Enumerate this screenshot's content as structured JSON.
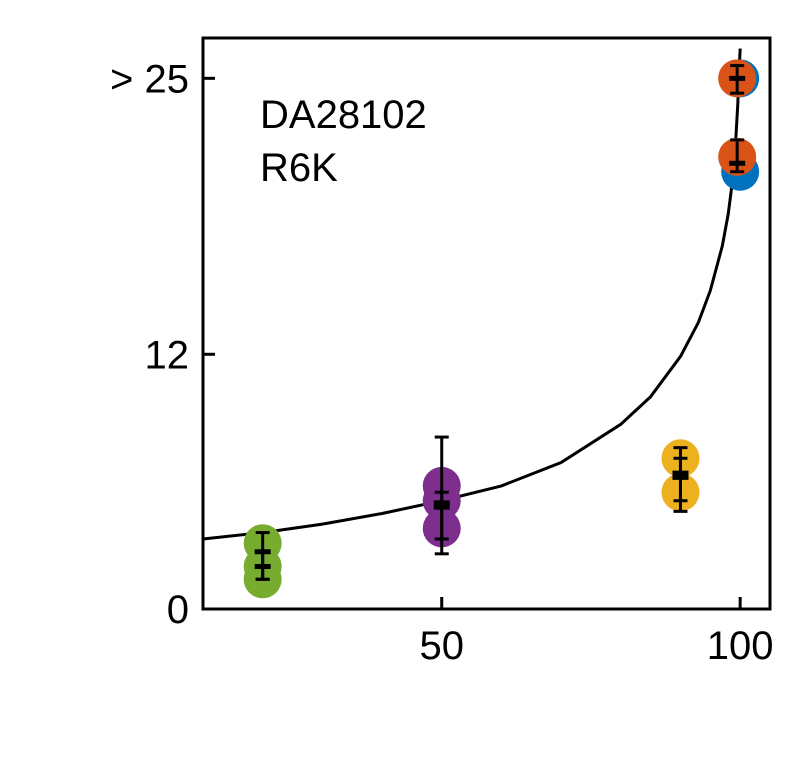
{
  "chart_data": {
    "type": "scatter",
    "title": "",
    "xlabel": "",
    "ylabel": "",
    "xlim": [
      10,
      105
    ],
    "ylim": [
      0,
      26.9
    ],
    "x_ticks": [
      50,
      100
    ],
    "x_tick_labels": [
      "50",
      "100"
    ],
    "y_ticks": [
      0,
      12,
      25
    ],
    "y_tick_labels": [
      "0",
      "12",
      "> 25"
    ],
    "annotation": [
      "DA28102",
      "R6K"
    ],
    "grid": false,
    "legend": "none",
    "point_groups": [
      {
        "color": "#77ac30",
        "x": 20,
        "y": [
          3.1,
          2.0,
          1.4
        ],
        "error_bars": [
          {
            "y": 2.7,
            "low": 1.4,
            "high": 3.6
          },
          {
            "y": 2.0,
            "low": 1.4,
            "high": 2.7
          }
        ]
      },
      {
        "color": "#7e2f8e",
        "x": 50,
        "y": [
          5.8,
          5.1,
          3.8
        ],
        "error_bars": [
          {
            "y": 5.0,
            "low": 2.6,
            "high": 8.1
          },
          {
            "y": 4.8,
            "low": 3.3,
            "high": 5.5
          }
        ]
      },
      {
        "color": "#edb120",
        "x": 90,
        "y": [
          7.1,
          5.5
        ],
        "error_bars": [
          {
            "y": 6.4,
            "low": 5.1,
            "high": 7.6
          },
          {
            "y": 6.2,
            "low": 4.6,
            "high": 7.1
          }
        ]
      },
      {
        "color": "#0072bd",
        "x": 100,
        "y": [
          25.0,
          20.6
        ],
        "error_bars": []
      },
      {
        "color": "#d95319",
        "x": 99.5,
        "y": [
          25.0,
          21.3
        ],
        "error_bars": [
          {
            "y": 25.0,
            "low": 24.3,
            "high": 25.6
          },
          {
            "y": 21.0,
            "low": 20.6,
            "high": 22.1
          }
        ]
      }
    ],
    "fit_curve": {
      "x": [
        10,
        20,
        30,
        40,
        50,
        60,
        70,
        80,
        85,
        90,
        93,
        95,
        97,
        98,
        98.5,
        99,
        99.3,
        99.6,
        99.8,
        100
      ],
      "y": [
        3.3,
        3.6,
        4.0,
        4.5,
        5.1,
        5.8,
        6.9,
        8.7,
        10.0,
        11.9,
        13.5,
        15.0,
        17.1,
        18.6,
        19.7,
        21.0,
        22.3,
        23.8,
        25.3,
        26.4
      ]
    }
  }
}
